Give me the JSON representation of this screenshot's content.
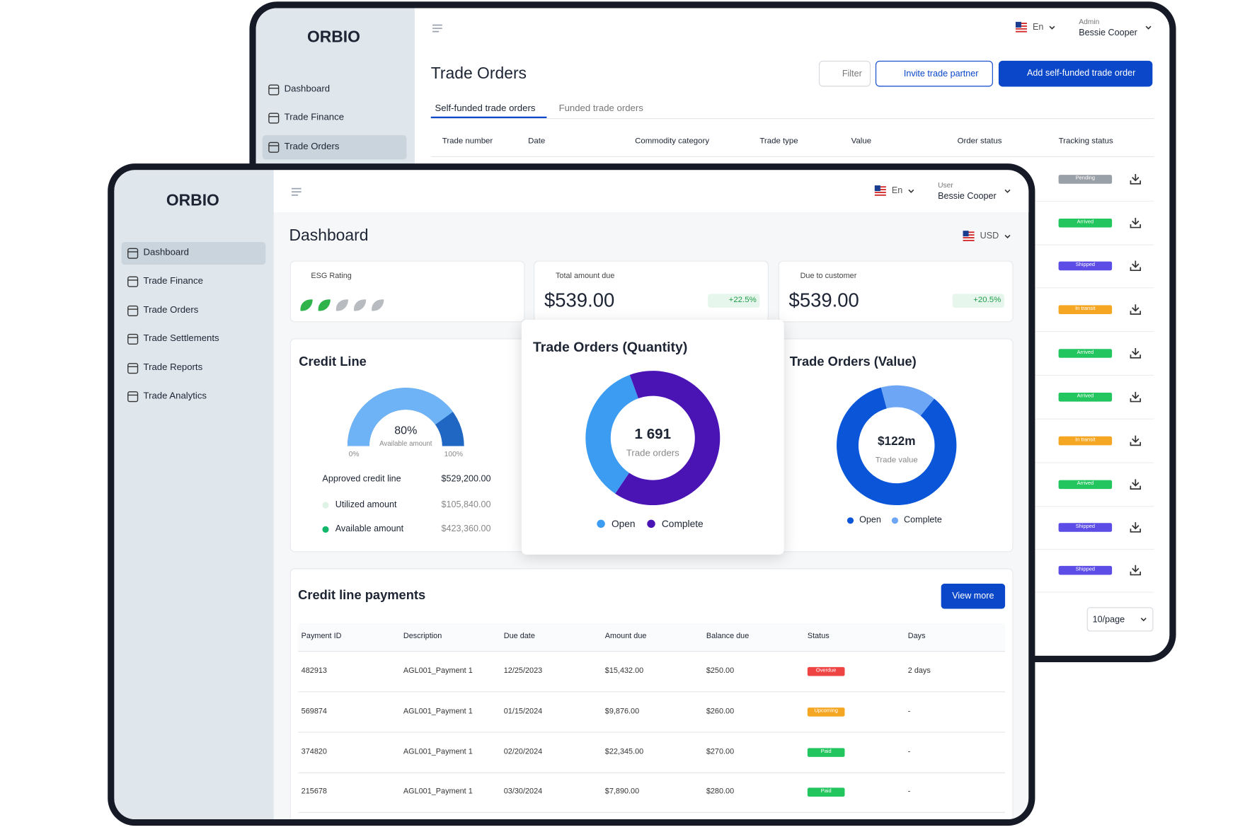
{
  "back_window": {
    "logo": "ORBIO",
    "nav": [
      "Dashboard",
      "Trade Finance",
      "Trade Orders"
    ],
    "language": "En",
    "role": "Admin",
    "user": "Bessie Cooper",
    "title": "Trade Orders",
    "filter": "Filter",
    "invite": "Invite trade partner",
    "add": "Add self-funded trade order",
    "tabs": [
      "Self-funded trade orders",
      "Funded trade orders"
    ],
    "columns": [
      "Trade number",
      "Date",
      "Commodity category",
      "Trade type",
      "Value",
      "Order status",
      "Tracking status"
    ],
    "tracking_status": [
      "Pending",
      "Arrived",
      "Shipped",
      "In transit",
      "Arrived",
      "Arrived",
      "In transit",
      "Arrived",
      "Shipped",
      "Shipped"
    ],
    "pager": "10/page"
  },
  "front_window": {
    "logo": "ORBIO",
    "nav": [
      "Dashboard",
      "Trade Finance",
      "Trade Orders",
      "Trade Settlements",
      "Trade Reports",
      "Trade Analytics"
    ],
    "language": "En",
    "role": "User",
    "user": "Bessie Cooper",
    "title": "Dashboard",
    "currency": "USD",
    "esg": {
      "label": "ESG Rating",
      "rating": 2,
      "scale": 5
    },
    "summary": [
      {
        "label": "Total amount due",
        "value": "$539.00",
        "change": "+22.5%"
      },
      {
        "label": "Due to customer",
        "value": "$539.00",
        "change": "+20.5%"
      }
    ],
    "credit_line": {
      "title": "Credit Line",
      "available": 80,
      "available_label": "80%",
      "caption": "Available amount",
      "min_label": "0%",
      "max_label": "100%",
      "rows": [
        {
          "label": "Approved credit line",
          "value": "$529,200.00"
        },
        {
          "label": "Utilized amount",
          "value": "$105,840.00"
        },
        {
          "label": "Available amount",
          "value": "$423,360.00"
        }
      ]
    },
    "quantity": {
      "title": "Trade Orders (Quantity)",
      "total_label": "1 691",
      "caption": "Trade orders",
      "series": [
        {
          "name": "Open",
          "color": "#3b9cf1",
          "value": 35
        },
        {
          "name": "Complete",
          "color": "#4a13b4",
          "value": 65
        }
      ]
    },
    "value": {
      "title": "Trade Orders (Value)",
      "total_label": "$122m",
      "caption": "Trade value",
      "series": [
        {
          "name": "Open",
          "color": "#0b56d8",
          "value": 85
        },
        {
          "name": "Complete",
          "color": "#6ea6f6",
          "value": 15
        }
      ]
    },
    "payments": {
      "title": "Credit line payments",
      "button": "View more",
      "columns": [
        "Payment ID",
        "Description",
        "Due date",
        "Amount due",
        "Balance due",
        "Status",
        "Days"
      ],
      "rows": [
        [
          "482913",
          "AGL001_Payment 1",
          "12/25/2023",
          "$15,432.00",
          "$250.00",
          "Overdue",
          "2 days"
        ],
        [
          "569874",
          "AGL001_Payment 1",
          "01/15/2024",
          "$9,876.00",
          "$260.00",
          "Upcoming",
          "-"
        ],
        [
          "374820",
          "AGL001_Payment 1",
          "02/20/2024",
          "$22,345.00",
          "$270.00",
          "Paid",
          "-"
        ],
        [
          "215678",
          "AGL001_Payment 1",
          "03/30/2024",
          "$7,890.00",
          "$280.00",
          "Paid",
          "-"
        ]
      ]
    }
  },
  "status_colors": {
    "Pending": "#9aa0a8",
    "Arrived": "#22c55e",
    "Shipped": "#5b4de6",
    "In transit": "#f5a623",
    "Overdue": "#ef4444",
    "Upcoming": "#f5a623",
    "Paid": "#22c55e"
  }
}
